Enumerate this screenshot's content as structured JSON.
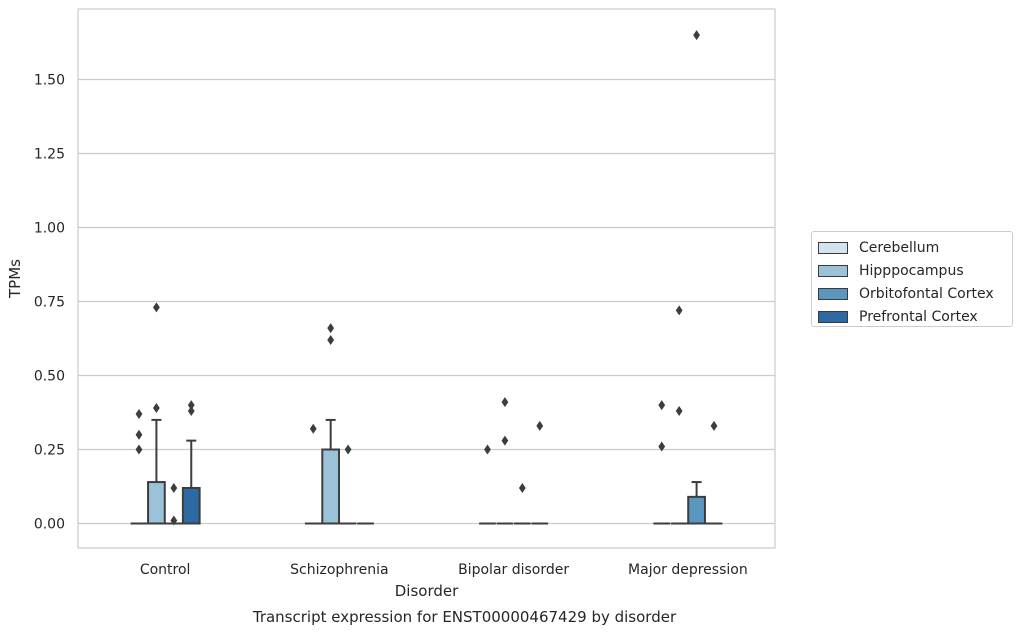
{
  "chart_data": {
    "type": "box",
    "title": "Transcript expression for ENST00000467429 by disorder",
    "xlabel": "Disorder",
    "ylabel": "TPMs",
    "categories": [
      "Control",
      "Schizophrenia",
      "Bipolar disorder",
      "Major depression"
    ],
    "ylim": [
      -0.08,
      1.77
    ],
    "yticks": [
      0.0,
      0.25,
      0.5,
      0.75,
      1.0,
      1.25,
      1.5
    ],
    "ytick_labels": [
      "0.00",
      "0.25",
      "0.50",
      "0.75",
      "1.00",
      "1.25",
      "1.50"
    ],
    "grid": true,
    "legend_position": "right",
    "series": [
      {
        "name": "Cerebellum",
        "color": "#d4e3f0",
        "boxes": [
          {
            "category": "Control",
            "q1": 0,
            "median": 0,
            "q3": 0,
            "whisker_low": 0,
            "whisker_high": 0,
            "outliers": [
              0.25,
              0.3,
              0.37
            ]
          },
          {
            "category": "Schizophrenia",
            "q1": 0,
            "median": 0,
            "q3": 0,
            "whisker_low": 0,
            "whisker_high": 0,
            "outliers": [
              0.32
            ]
          },
          {
            "category": "Bipolar disorder",
            "q1": 0,
            "median": 0,
            "q3": 0,
            "whisker_low": 0,
            "whisker_high": 0,
            "outliers": [
              0.25
            ]
          },
          {
            "category": "Major depression",
            "q1": 0,
            "median": 0,
            "q3": 0,
            "whisker_low": 0,
            "whisker_high": 0,
            "outliers": [
              0.26,
              0.4
            ]
          }
        ]
      },
      {
        "name": "Hipppocampus",
        "color": "#9cc2d9",
        "boxes": [
          {
            "category": "Control",
            "q1": 0,
            "median": 0,
            "q3": 0.14,
            "whisker_low": 0,
            "whisker_high": 0.35,
            "outliers": [
              0.39,
              0.73
            ]
          },
          {
            "category": "Schizophrenia",
            "q1": 0,
            "median": 0,
            "q3": 0.25,
            "whisker_low": 0,
            "whisker_high": 0.35,
            "outliers": [
              0.62,
              0.66
            ]
          },
          {
            "category": "Bipolar disorder",
            "q1": 0,
            "median": 0,
            "q3": 0,
            "whisker_low": 0,
            "whisker_high": 0,
            "outliers": [
              0.28,
              0.41
            ]
          },
          {
            "category": "Major depression",
            "q1": 0,
            "median": 0,
            "q3": 0,
            "whisker_low": 0,
            "whisker_high": 0,
            "outliers": [
              0.38,
              0.72
            ]
          }
        ]
      },
      {
        "name": "Orbitofontal Cortex",
        "color": "#5a96c0",
        "boxes": [
          {
            "category": "Control",
            "q1": 0,
            "median": 0,
            "q3": 0,
            "whisker_low": 0,
            "whisker_high": 0,
            "outliers": [
              0.01,
              0.12
            ]
          },
          {
            "category": "Schizophrenia",
            "q1": 0,
            "median": 0,
            "q3": 0,
            "whisker_low": 0,
            "whisker_high": 0,
            "outliers": [
              0.25
            ]
          },
          {
            "category": "Bipolar disorder",
            "q1": 0,
            "median": 0,
            "q3": 0,
            "whisker_low": 0,
            "whisker_high": 0,
            "outliers": [
              0.12
            ]
          },
          {
            "category": "Major depression",
            "q1": 0,
            "median": 0,
            "q3": 0.09,
            "whisker_low": 0,
            "whisker_high": 0.14,
            "outliers": [
              1.65
            ]
          }
        ]
      },
      {
        "name": "Prefrontal Cortex",
        "color": "#2d6aa3",
        "boxes": [
          {
            "category": "Control",
            "q1": 0,
            "median": 0,
            "q3": 0.12,
            "whisker_low": 0,
            "whisker_high": 0.28,
            "outliers": [
              0.38,
              0.4
            ]
          },
          {
            "category": "Schizophrenia",
            "q1": 0,
            "median": 0,
            "q3": 0,
            "whisker_low": 0,
            "whisker_high": 0,
            "outliers": []
          },
          {
            "category": "Bipolar disorder",
            "q1": 0,
            "median": 0,
            "q3": 0,
            "whisker_low": 0,
            "whisker_high": 0,
            "outliers": [
              0.33
            ]
          },
          {
            "category": "Major depression",
            "q1": 0,
            "median": 0,
            "q3": 0,
            "whisker_low": 0,
            "whisker_high": 0,
            "outliers": [
              0.33
            ]
          }
        ]
      }
    ]
  }
}
